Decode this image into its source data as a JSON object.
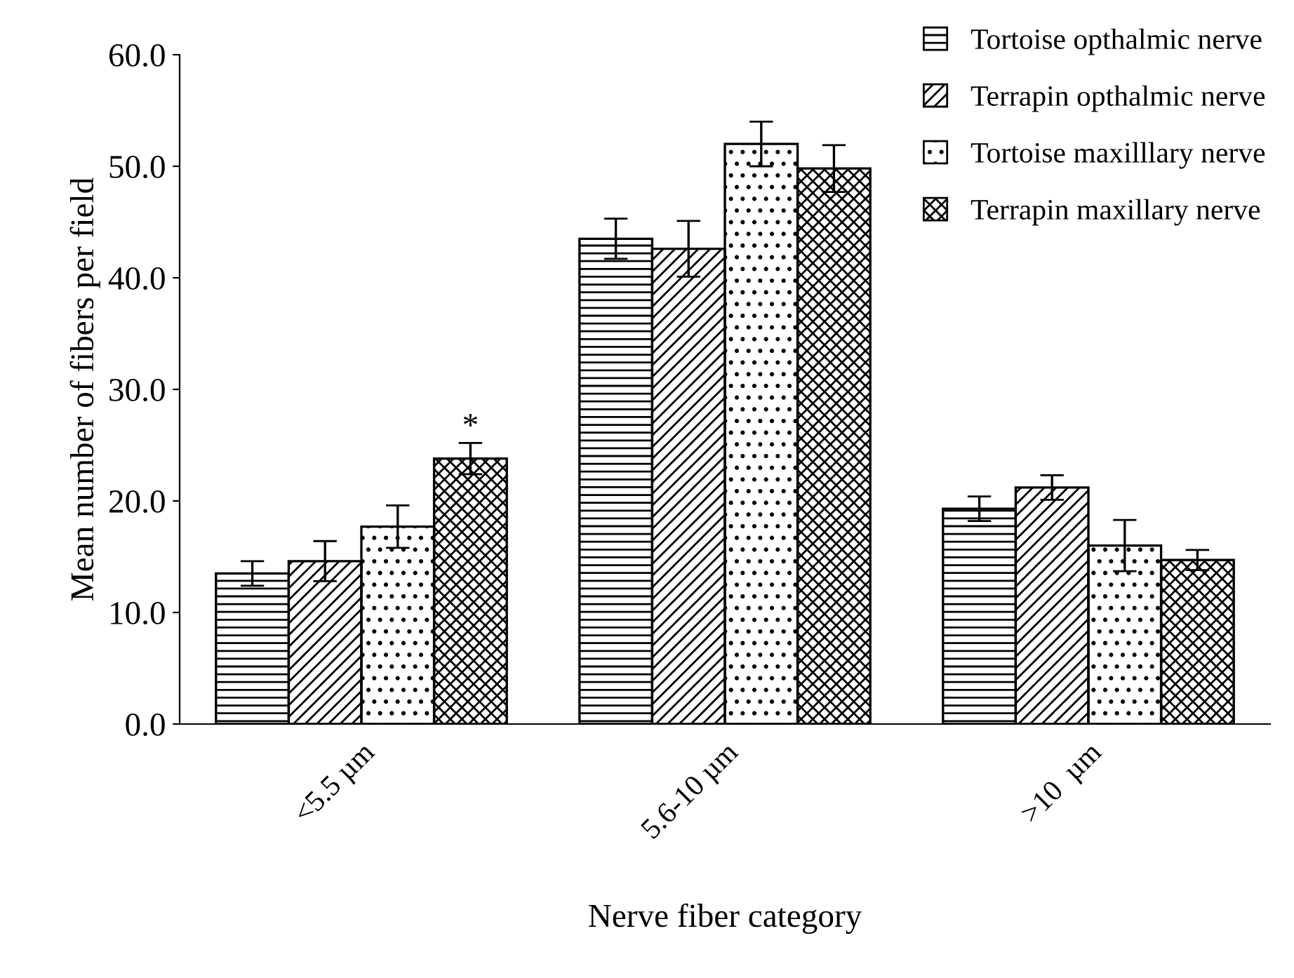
{
  "chart_data": {
    "type": "bar",
    "xlabel": "Nerve fiber category",
    "ylabel": "Mean number of fibers per field",
    "categories": [
      "<5.5 µm",
      "5.6-10 µm",
      ">10  µm"
    ],
    "series": [
      {
        "name": "Tortoise opthalmic nerve",
        "color": "#000000",
        "values": [
          13.5,
          43.5,
          19.3
        ],
        "errors": [
          1.1,
          1.8,
          1.1
        ]
      },
      {
        "name": "Terrapin opthalmic nerve",
        "color": "#000000",
        "values": [
          14.6,
          42.6,
          21.2
        ],
        "errors": [
          1.8,
          2.5,
          1.1
        ]
      },
      {
        "name": "Tortoise maxilllary nerve",
        "color": "#000000",
        "values": [
          17.7,
          52.0,
          16.0
        ],
        "errors": [
          1.9,
          2.0,
          2.3
        ]
      },
      {
        "name": "Terrapin maxillary nerve",
        "color": "#000000",
        "values": [
          23.8,
          49.8,
          14.7
        ],
        "errors": [
          1.4,
          2.1,
          0.9
        ]
      }
    ],
    "ylim": [
      0,
      60
    ],
    "yticks": [
      {
        "value": 0,
        "label": "0.0"
      },
      {
        "value": 10,
        "label": "10.0"
      },
      {
        "value": 20,
        "label": "20.0"
      },
      {
        "value": 30,
        "label": "30.0"
      },
      {
        "value": 40,
        "label": "40.0"
      },
      {
        "value": 50,
        "label": "50.0"
      },
      {
        "value": 60,
        "label": "60.0"
      }
    ],
    "annotations": [
      "*"
    ],
    "legend": "top right",
    "grid": false
  }
}
